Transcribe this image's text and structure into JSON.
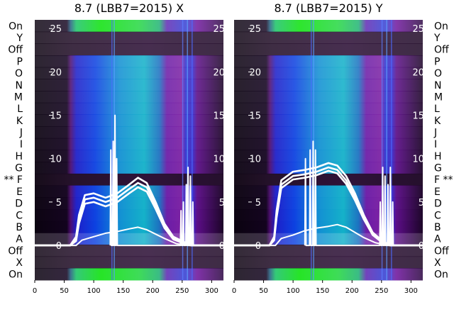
{
  "chart_data": [
    {
      "type": "heatmap",
      "title": "8.7 (LBB7=2015) X",
      "xlabel": "",
      "ylabel": "",
      "xlim": [
        0,
        320
      ],
      "x_ticks": [
        0,
        50,
        100,
        150,
        200,
        250,
        300
      ],
      "ylim": [
        -4,
        26
      ],
      "y_ticks": [
        0,
        5,
        10,
        15,
        20,
        25
      ],
      "row_labels": [
        "On",
        "Y",
        "Off",
        "P",
        "O",
        "N",
        "M",
        "L",
        "K",
        "J",
        "I",
        "H",
        "G",
        "F",
        "E",
        "D",
        "C",
        "B",
        "A",
        "Off",
        "X",
        "On"
      ],
      "marked_row": "F",
      "marker": "**",
      "grid": false,
      "series": [
        {
          "values": [
            [
              0,
              0
            ],
            [
              60,
              0
            ],
            [
              70,
              1
            ],
            [
              75,
              3.5
            ],
            [
              85,
              5.8
            ],
            [
              100,
              6
            ],
            [
              120,
              5.5
            ],
            [
              140,
              6
            ],
            [
              160,
              7
            ],
            [
              175,
              7.8
            ],
            [
              190,
              7.2
            ],
            [
              205,
              5
            ],
            [
              220,
              2.5
            ],
            [
              235,
              1
            ],
            [
              250,
              0.5
            ],
            [
              265,
              0
            ],
            [
              320,
              0
            ]
          ]
        },
        {
          "values": [
            [
              0,
              0
            ],
            [
              60,
              0
            ],
            [
              70,
              0.8
            ],
            [
              75,
              3
            ],
            [
              85,
              5.3
            ],
            [
              100,
              5.5
            ],
            [
              120,
              5
            ],
            [
              140,
              5.5
            ],
            [
              160,
              6.5
            ],
            [
              175,
              7.2
            ],
            [
              190,
              6.7
            ],
            [
              205,
              4.6
            ],
            [
              220,
              2.2
            ],
            [
              235,
              0.8
            ],
            [
              250,
              0.4
            ],
            [
              265,
              0
            ],
            [
              320,
              0
            ]
          ]
        },
        {
          "values": [
            [
              0,
              0
            ],
            [
              60,
              0
            ],
            [
              70,
              0.5
            ],
            [
              75,
              2.5
            ],
            [
              85,
              4.8
            ],
            [
              100,
              5
            ],
            [
              120,
              4.5
            ],
            [
              140,
              5
            ],
            [
              160,
              6
            ],
            [
              175,
              6.7
            ],
            [
              190,
              6.2
            ],
            [
              205,
              4.2
            ],
            [
              220,
              2
            ],
            [
              235,
              0.7
            ],
            [
              250,
              0.3
            ],
            [
              265,
              0
            ],
            [
              320,
              0
            ]
          ]
        },
        {
          "values": [
            [
              0,
              0
            ],
            [
              70,
              0
            ],
            [
              80,
              0.6
            ],
            [
              100,
              1
            ],
            [
              120,
              1.4
            ],
            [
              140,
              1.6
            ],
            [
              160,
              1.9
            ],
            [
              175,
              2.1
            ],
            [
              190,
              1.8
            ],
            [
              205,
              1.3
            ],
            [
              220,
              0.8
            ],
            [
              240,
              0.2
            ],
            [
              260,
              0
            ],
            [
              320,
              0
            ]
          ]
        },
        {
          "values": [
            [
              128,
              0
            ],
            [
              129,
              11
            ],
            [
              130,
              0
            ],
            [
              132,
              0
            ],
            [
              133,
              12
            ],
            [
              134,
              0
            ],
            [
              135,
              0
            ],
            [
              136,
              15
            ],
            [
              137,
              0
            ],
            [
              138,
              0
            ],
            [
              139,
              10
            ],
            [
              140,
              0
            ],
            [
              247,
              0
            ],
            [
              248,
              4
            ],
            [
              249,
              0
            ],
            [
              251,
              0
            ],
            [
              252,
              5
            ],
            [
              253,
              0
            ],
            [
              256,
              0
            ],
            [
              257,
              7
            ],
            [
              258,
              0
            ],
            [
              259,
              0
            ],
            [
              260,
              9
            ],
            [
              261,
              0
            ],
            [
              263,
              0
            ],
            [
              264,
              8
            ],
            [
              265,
              0
            ],
            [
              267,
              0
            ],
            [
              268,
              5
            ],
            [
              269,
              0
            ]
          ]
        }
      ]
    },
    {
      "type": "heatmap",
      "title": "8.7 (LBB7=2015) Y",
      "xlabel": "",
      "ylabel": "",
      "xlim": [
        0,
        320
      ],
      "x_ticks": [
        0,
        50,
        100,
        150,
        200,
        250,
        300
      ],
      "ylim": [
        -4,
        26
      ],
      "y_ticks": [
        0,
        5,
        10,
        15,
        20,
        25
      ],
      "row_labels": [
        "On",
        "Y",
        "Off",
        "P",
        "O",
        "N",
        "M",
        "L",
        "K",
        "J",
        "I",
        "H",
        "G",
        "F",
        "E",
        "D",
        "C",
        "B",
        "A",
        "Off",
        "X",
        "On"
      ],
      "marked_row": "F",
      "marker": "**",
      "grid": false,
      "series": [
        {
          "values": [
            [
              0,
              0
            ],
            [
              60,
              0
            ],
            [
              68,
              1
            ],
            [
              72,
              4
            ],
            [
              80,
              7.5
            ],
            [
              100,
              8.5
            ],
            [
              120,
              8.7
            ],
            [
              140,
              9
            ],
            [
              160,
              9.5
            ],
            [
              175,
              9.2
            ],
            [
              190,
              8
            ],
            [
              205,
              6
            ],
            [
              220,
              3.5
            ],
            [
              235,
              1.5
            ],
            [
              250,
              0.6
            ],
            [
              265,
              0
            ],
            [
              320,
              0
            ]
          ]
        },
        {
          "values": [
            [
              0,
              0
            ],
            [
              60,
              0
            ],
            [
              68,
              0.8
            ],
            [
              72,
              3.6
            ],
            [
              80,
              7
            ],
            [
              100,
              8
            ],
            [
              120,
              8.2
            ],
            [
              140,
              8.5
            ],
            [
              160,
              9
            ],
            [
              175,
              8.7
            ],
            [
              190,
              7.5
            ],
            [
              205,
              5.6
            ],
            [
              220,
              3.2
            ],
            [
              235,
              1.3
            ],
            [
              250,
              0.5
            ],
            [
              265,
              0
            ],
            [
              320,
              0
            ]
          ]
        },
        {
          "values": [
            [
              0,
              0
            ],
            [
              60,
              0
            ],
            [
              68,
              0.6
            ],
            [
              72,
              3.2
            ],
            [
              80,
              6.6
            ],
            [
              100,
              7.6
            ],
            [
              120,
              7.8
            ],
            [
              140,
              8.1
            ],
            [
              160,
              8.6
            ],
            [
              175,
              8.3
            ],
            [
              190,
              7.1
            ],
            [
              205,
              5.2
            ],
            [
              220,
              3
            ],
            [
              235,
              1.2
            ],
            [
              250,
              0.4
            ],
            [
              265,
              0
            ],
            [
              320,
              0
            ]
          ]
        },
        {
          "values": [
            [
              0,
              0
            ],
            [
              70,
              0
            ],
            [
              80,
              0.8
            ],
            [
              100,
              1.2
            ],
            [
              120,
              1.7
            ],
            [
              140,
              2
            ],
            [
              160,
              2.2
            ],
            [
              175,
              2.4
            ],
            [
              190,
              2.1
            ],
            [
              205,
              1.5
            ],
            [
              220,
              0.9
            ],
            [
              240,
              0.3
            ],
            [
              260,
              0
            ],
            [
              320,
              0
            ]
          ]
        },
        {
          "values": [
            [
              120,
              0
            ],
            [
              121,
              10
            ],
            [
              122,
              0
            ],
            [
              128,
              0
            ],
            [
              129,
              11
            ],
            [
              130,
              0
            ],
            [
              133,
              0
            ],
            [
              134,
              12
            ],
            [
              135,
              0
            ],
            [
              137,
              0
            ],
            [
              138,
              11
            ],
            [
              139,
              0
            ],
            [
              247,
              0
            ],
            [
              248,
              5
            ],
            [
              249,
              0
            ],
            [
              251,
              0
            ],
            [
              252,
              9
            ],
            [
              253,
              0
            ],
            [
              255,
              0
            ],
            [
              256,
              8
            ],
            [
              257,
              0
            ],
            [
              260,
              0
            ],
            [
              261,
              7
            ],
            [
              262,
              0
            ],
            [
              264,
              0
            ],
            [
              265,
              9
            ],
            [
              266,
              0
            ],
            [
              268,
              0
            ],
            [
              269,
              5
            ],
            [
              270,
              0
            ]
          ]
        }
      ]
    }
  ]
}
